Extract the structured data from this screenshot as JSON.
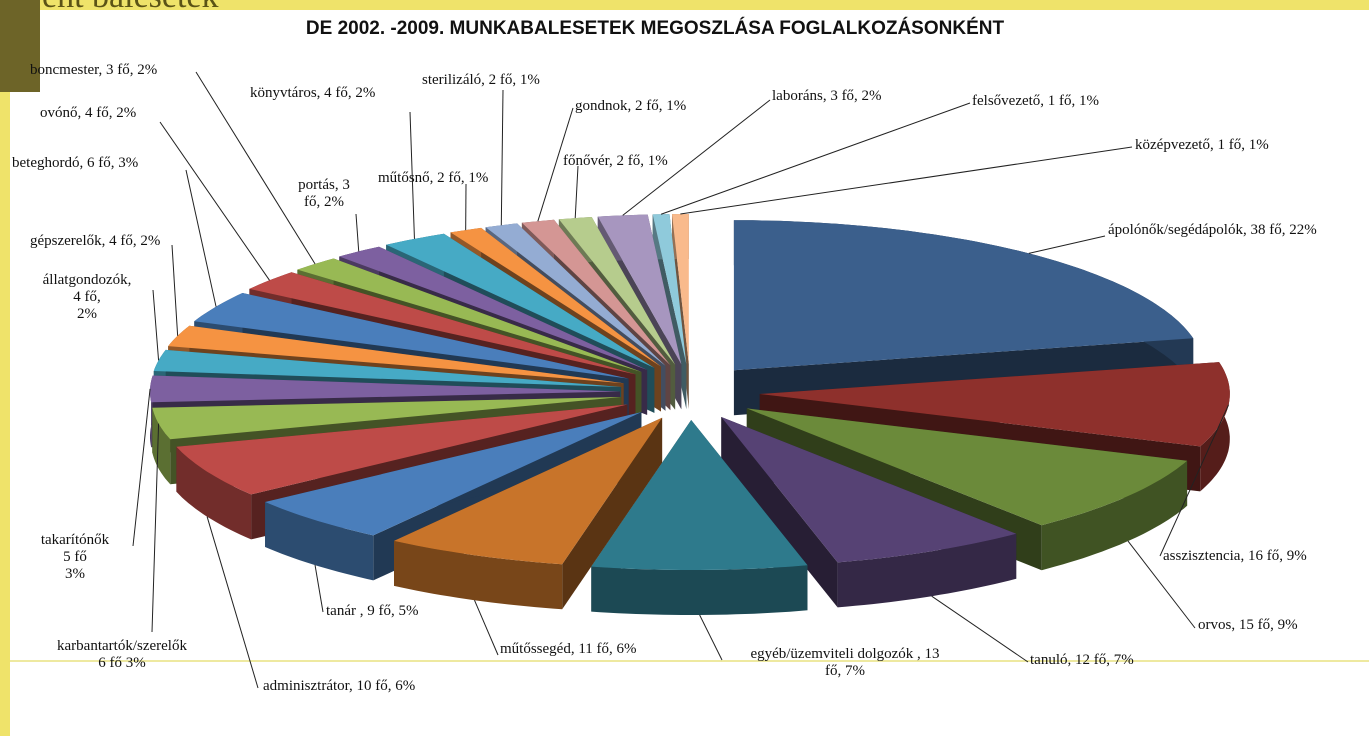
{
  "slide_title": "ent balesetek",
  "chart_data": {
    "type": "pie",
    "style": "3d-exploded",
    "title": "DE 2002. -2009. MUNKABALESETEK MEGOSZLÁSA FOGLALKOZÁSONKÉNT",
    "values": [
      38,
      16,
      15,
      12,
      13,
      11,
      9,
      10,
      6,
      5,
      4,
      4,
      6,
      4,
      3,
      3,
      4,
      2,
      2,
      2,
      2,
      3,
      1,
      1
    ],
    "value_labels": [
      "ápolónők/segédápolók, 38 fő, 22%",
      "asszisztencia, 16 fő, 9%",
      "orvos, 15 fő, 9%",
      "tanuló, 12 fő, 7%",
      "egyéb/üzemviteli dolgozók , 13\nfő, 7%",
      "műtőssegéd, 11 fő, 6%",
      "tanár , 9 fő, 5%",
      "adminisztrátor, 10 fő, 6%",
      "karbantartók/szerelők\n6 fő 3%",
      "takarítónők\n5 fő\n3%",
      "állatgondozók,\n4 fő,\n2%",
      "gépszerelők, 4 fő, 2%",
      "beteghordó, 6 fő, 3%",
      "ovónő, 4 fő, 2%",
      "boncmester, 3 fő, 2%",
      "portás, 3\nfő, 2%",
      "könyvtáros, 4 fő, 2%",
      "műtősnő, 2 fő, 1%",
      "sterilizáló, 2 fő, 1%",
      "gondnok, 2 fő, 1%",
      "főnővér, 2 fő, 1%",
      "laboráns, 3 fő, 2%",
      "felsővezető, 1 fő, 1%",
      "középvezető, 1 fő, 1%"
    ],
    "colors": [
      "#3b5f8c",
      "#8e302c",
      "#6b8a3a",
      "#564274",
      "#2e7a8c",
      "#c8742a",
      "#4a7ebb",
      "#be4b48",
      "#98b954",
      "#7d60a0",
      "#46aac5",
      "#f59342",
      "#4a7ebb",
      "#be4b48",
      "#98b954",
      "#7d60a0",
      "#46aac5",
      "#f59342",
      "#94acd3",
      "#d49694",
      "#b6cc8d",
      "#a796bf",
      "#8fcadb",
      "#f9ba8c"
    ]
  }
}
